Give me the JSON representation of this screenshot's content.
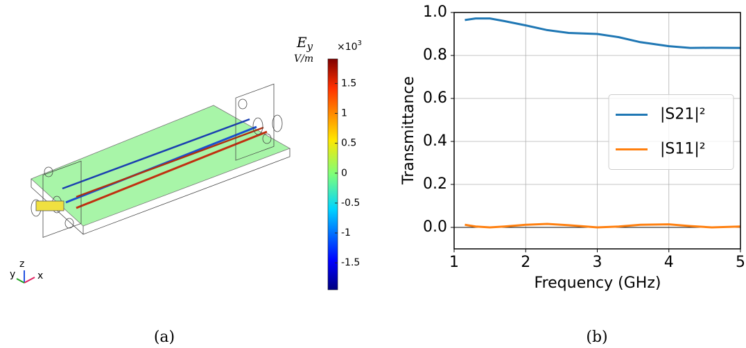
{
  "chart_data": [
    {
      "type": "colorbar",
      "title": "E",
      "title_subscript": "y",
      "unit": "V/m",
      "scale_base": "×10",
      "scale_exponent": "3",
      "ylim": [
        -1.95,
        1.91
      ],
      "yticks": [
        1.5,
        1,
        0.5,
        0,
        -0.5,
        -1,
        -1.5
      ],
      "triad_labels": [
        "y",
        "z",
        "x"
      ],
      "caption": "(a)"
    },
    {
      "type": "line",
      "xlabel": "Frequency (GHz)",
      "ylabel": "Transmittance",
      "x": [
        1.15,
        1.3,
        1.5,
        1.7,
        2.0,
        2.3,
        2.6,
        3.0,
        3.3,
        3.6,
        4.0,
        4.3,
        4.6,
        5.0
      ],
      "series": [
        {
          "name": "|S21|²",
          "color": "#1f77b4",
          "values": [
            0.965,
            0.972,
            0.972,
            0.96,
            0.94,
            0.918,
            0.905,
            0.9,
            0.885,
            0.862,
            0.843,
            0.835,
            0.836,
            0.835
          ]
        },
        {
          "name": "|S11|²",
          "color": "#ff7f0e",
          "values": [
            0.012,
            0.004,
            0.0,
            0.004,
            0.012,
            0.016,
            0.01,
            0.0,
            0.004,
            0.012,
            0.014,
            0.006,
            0.0,
            0.004
          ]
        }
      ],
      "xlim": [
        1,
        5
      ],
      "ylim": [
        -0.1,
        1.0
      ],
      "xticks": [
        1,
        2,
        3,
        4,
        5
      ],
      "yticks": [
        {
          "value": 0,
          "label": "0.0"
        },
        {
          "value": 0.2,
          "label": "0.2"
        },
        {
          "value": 0.4,
          "label": "0.4"
        },
        {
          "value": 0.6,
          "label": "0.6"
        },
        {
          "value": 0.8,
          "label": "0.8"
        },
        {
          "value": 1.0,
          "label": "1.0"
        }
      ],
      "grid": true,
      "legend": "center right",
      "caption": "(b)"
    }
  ]
}
